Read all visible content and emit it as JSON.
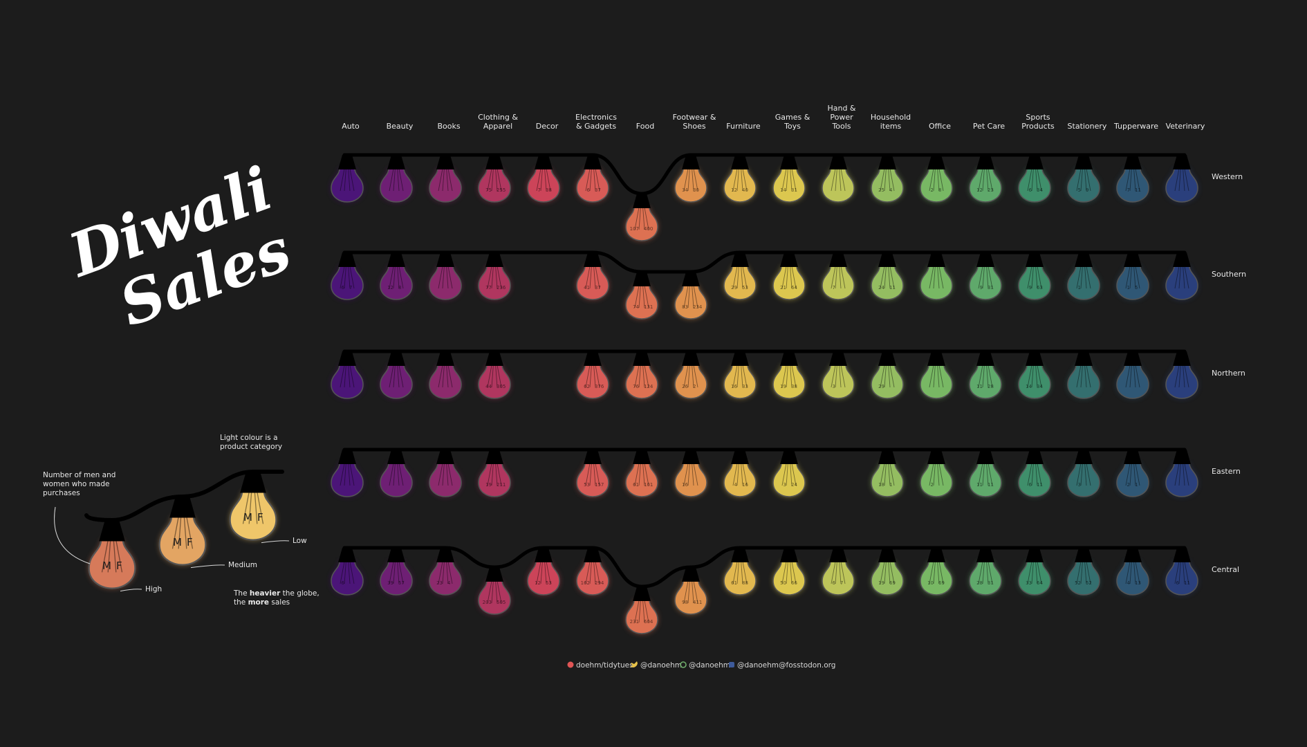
{
  "title": {
    "line1": "Diwali",
    "line2": "Sales"
  },
  "legend": {
    "note_counts": [
      "Number of men and",
      "women who made",
      "purchases"
    ],
    "note_colour": [
      "Light colour is a",
      "product category"
    ],
    "note_weight_parts": [
      {
        "text": "The ",
        "bold": false
      },
      {
        "text": "heavier",
        "bold": true
      },
      {
        "text": " the globe,",
        "bold": false
      }
    ],
    "note_weight_line2_parts": [
      {
        "text": "the ",
        "bold": false
      },
      {
        "text": "more",
        "bold": true
      },
      {
        "text": " sales",
        "bold": false
      }
    ],
    "levels": [
      {
        "label": "High",
        "color": "#d67a5a"
      },
      {
        "label": "Medium",
        "color": "#e3a563"
      },
      {
        "label": "Low",
        "color": "#efc66a"
      }
    ],
    "m_label": "M",
    "f_label": "F"
  },
  "footer": {
    "github": "doehm/tidytues",
    "twitter": "@danoehm",
    "threads": "@danoehm",
    "mastodon": "@danoehm@fosstodon.org"
  },
  "chart_data": {
    "type": "bulb-grid",
    "categories": [
      "Auto",
      "Beauty",
      "Books",
      "Clothing & Apparel",
      "Decor",
      "Electronics & Gadgets",
      "Food",
      "Footwear & Shoes",
      "Furniture",
      "Games & Toys",
      "Hand & Power Tools",
      "Household items",
      "Office",
      "Pet Care",
      "Sports Products",
      "Stationery",
      "Tupperware",
      "Veterinary"
    ],
    "category_lines": [
      [
        "Auto"
      ],
      [
        "Beauty"
      ],
      [
        "Books"
      ],
      [
        "Clothing &",
        "Apparel"
      ],
      [
        "Decor"
      ],
      [
        "Electronics",
        "& Gadgets"
      ],
      [
        "Food"
      ],
      [
        "Footwear &",
        "Shoes"
      ],
      [
        "Furniture"
      ],
      [
        "Games &",
        "Toys"
      ],
      [
        "Hand &",
        "Power",
        "Tools"
      ],
      [
        "Household",
        "items"
      ],
      [
        "Office"
      ],
      [
        "Pet Care"
      ],
      [
        "Sports",
        "Products"
      ],
      [
        "Stationery"
      ],
      [
        "Tupperware"
      ],
      [
        "Veterinary"
      ]
    ],
    "colors": [
      "#4b1578",
      "#6e1f74",
      "#8c2a6c",
      "#b0365f",
      "#cc4459",
      "#d85b57",
      "#dd7152",
      "#e0924e",
      "#e2b84f",
      "#dcc74f",
      "#bdc55a",
      "#94bd61",
      "#78b864",
      "#5fa96b",
      "#3f8f6b",
      "#346f6f",
      "#2f5775",
      "#2a3f7c"
    ],
    "regions": [
      {
        "name": "Western",
        "levels": [
          1,
          1,
          1,
          1,
          1,
          1,
          3,
          1,
          1,
          1,
          1,
          1,
          1,
          1,
          1,
          1,
          1,
          1
        ],
        "values": [
          [
            "",
            ""
          ],
          [
            "",
            ""
          ],
          [
            "",
            ""
          ],
          [
            "75",
            "255"
          ],
          [
            "7",
            "38"
          ],
          [
            "6",
            "37"
          ],
          [
            "107",
            "400"
          ],
          [
            "34",
            "30"
          ],
          [
            "12",
            "40"
          ],
          [
            "14",
            "31"
          ],
          [
            "",
            ""
          ],
          [
            "25",
            "4"
          ],
          [
            "2",
            "8"
          ],
          [
            "12",
            "23"
          ],
          [
            "6",
            "34"
          ],
          [
            "5",
            "9"
          ],
          [
            "7",
            "11"
          ],
          [
            "",
            ""
          ]
        ]
      },
      {
        "name": "Southern",
        "levels": [
          1,
          1,
          1,
          1,
          0,
          1,
          2,
          2,
          1,
          1,
          1,
          1,
          1,
          1,
          1,
          1,
          1,
          1
        ],
        "values": [
          [
            "6",
            "7"
          ],
          [
            "12",
            "8"
          ],
          [
            "",
            ""
          ],
          [
            "77",
            "236"
          ],
          [
            "",
            ""
          ],
          [
            "41",
            "37"
          ],
          [
            "74",
            "131"
          ],
          [
            "83",
            "234"
          ],
          [
            "29",
            "53"
          ],
          [
            "21",
            "64"
          ],
          [
            "7",
            ""
          ],
          [
            "24",
            "11"
          ],
          [
            "",
            ""
          ],
          [
            "9",
            "31"
          ],
          [
            "9",
            "63"
          ],
          [
            "1",
            ""
          ],
          [
            "1",
            "5"
          ],
          [
            "",
            ""
          ]
        ]
      },
      {
        "name": "Northern",
        "levels": [
          1,
          1,
          1,
          1,
          0,
          1,
          1,
          1,
          1,
          1,
          1,
          1,
          1,
          1,
          1,
          1,
          1,
          1
        ],
        "values": [
          [
            "",
            ""
          ],
          [
            "",
            ""
          ],
          [
            "",
            ""
          ],
          [
            "44",
            "305"
          ],
          [
            "",
            ""
          ],
          [
            "62",
            "376"
          ],
          [
            "76",
            "124"
          ],
          [
            "26",
            "2"
          ],
          [
            "16",
            "33"
          ],
          [
            "19",
            "38"
          ],
          [
            "3",
            ""
          ],
          [
            "29",
            ""
          ],
          [
            "",
            ""
          ],
          [
            "11",
            "28"
          ],
          [
            "14",
            "34"
          ],
          [
            "",
            ""
          ],
          [
            "",
            ""
          ],
          [
            "",
            ""
          ]
        ]
      },
      {
        "name": "Eastern",
        "levels": [
          1,
          1,
          1,
          1,
          0,
          1,
          1,
          1,
          1,
          1,
          0,
          1,
          1,
          1,
          1,
          1,
          1,
          1
        ],
        "values": [
          [
            "",
            ""
          ],
          [
            "",
            ""
          ],
          [
            "",
            ""
          ],
          [
            "19",
            "211"
          ],
          [
            "",
            ""
          ],
          [
            "53",
            "157"
          ],
          [
            "61",
            "101"
          ],
          [
            "16",
            ""
          ],
          [
            "4",
            "16"
          ],
          [
            "3",
            "24"
          ],
          [
            "",
            ""
          ],
          [
            "18",
            "1"
          ],
          [
            "2",
            ""
          ],
          [
            "11",
            "11"
          ],
          [
            "6",
            "11"
          ],
          [
            "3",
            ""
          ],
          [
            "2",
            "1"
          ],
          [
            "",
            ""
          ]
        ]
      },
      {
        "name": "Central",
        "levels": [
          1,
          1,
          1,
          2,
          1,
          1,
          3,
          2,
          1,
          1,
          1,
          1,
          1,
          1,
          1,
          1,
          1,
          1
        ],
        "values": [
          [
            "6",
            ""
          ],
          [
            "39",
            "57"
          ],
          [
            "23",
            "4"
          ],
          [
            "203",
            "505"
          ],
          [
            "12",
            "53"
          ],
          [
            "162",
            "294"
          ],
          [
            "231",
            "604"
          ],
          [
            "98",
            "411"
          ],
          [
            "61",
            "88"
          ],
          [
            "50",
            "66"
          ],
          [
            "6",
            "7"
          ],
          [
            "19",
            "69"
          ],
          [
            "10",
            "69"
          ],
          [
            "28",
            "31"
          ],
          [
            "33",
            "64"
          ],
          [
            "52",
            "52"
          ],
          [
            "4",
            "13"
          ],
          [
            "6",
            "11"
          ]
        ]
      }
    ]
  }
}
